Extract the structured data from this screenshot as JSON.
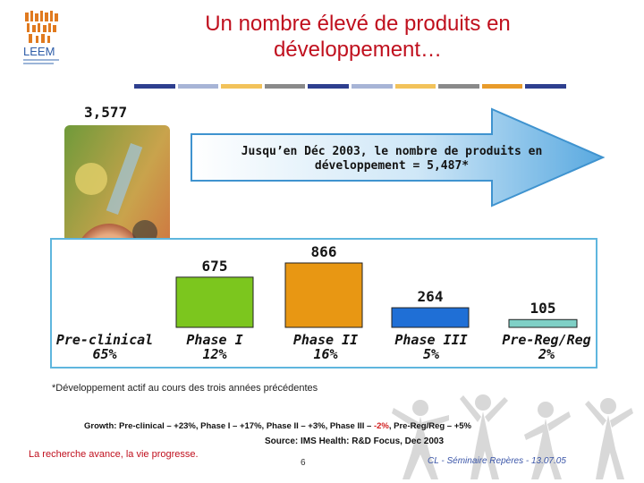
{
  "slide": {
    "title": "Un nombre élevé de produits en développement…",
    "logo_text": "LEEM",
    "tagline": "La recherche avance, la vie progresse.",
    "page_number": "6",
    "footer": "CL - Séminaire Repères - 13.07.05"
  },
  "colors": {
    "title": "#c0101e",
    "frame": "#5fb6de",
    "arrow": "#59a9e0",
    "stripe": [
      "#2e3f8f",
      "#a7b4d6",
      "#f2c25a",
      "#8a8a8a",
      "#2e3f8f",
      "#a7b4d6",
      "#f2c25a",
      "#8a8a8a",
      "#e89b2a",
      "#2e3f8f"
    ]
  },
  "arrow": {
    "text_line1": "Jusqu’en Déc 2003, le nombre de produits en",
    "text_line2": "développement = 5,487*"
  },
  "chart_data": {
    "type": "bar",
    "title": "Jusqu’en Déc 2003, le nombre de produits en développement = 5,487*",
    "categories": [
      "Pre-clinical",
      "Phase I",
      "Phase II",
      "Phase III",
      "Pre-Reg/Reg"
    ],
    "category_shares": [
      "65%",
      "12%",
      "16%",
      "5%",
      "2%"
    ],
    "values": [
      3577,
      675,
      866,
      264,
      105
    ],
    "value_labels": [
      "3,577",
      "675",
      "866",
      "264",
      "105"
    ],
    "bar_colors": [
      "#7cc61e",
      "#7cc61e",
      "#e89713",
      "#1f6fd6",
      "#7fd0c6"
    ],
    "xlabel": "",
    "ylabel": "",
    "ylim": [
      0,
      3577
    ]
  },
  "notes": {
    "footnote": "*Développement actif au cours des trois années précédentes",
    "growth_prefix": "Growth: Pre-clinical – +23%, Phase I – +17%, Phase II – +3%, Phase III – ",
    "growth_negative": "-2%",
    "growth_suffix": ", Pre-Reg/Reg – +5%",
    "source": "Source: IMS Health: R&D Focus, Dec 2003"
  }
}
